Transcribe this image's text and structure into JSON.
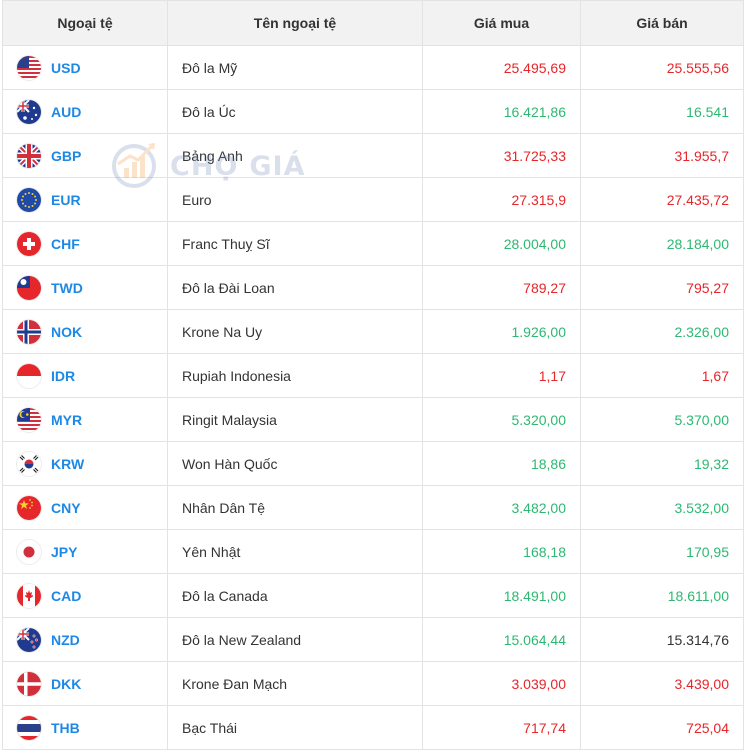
{
  "headers": {
    "code": "Ngoại tệ",
    "name": "Tên ngoại tệ",
    "buy": "Giá mua",
    "sell": "Giá bán"
  },
  "watermark": {
    "text": "CHỢ GIÁ",
    "icon": "chart-logo-icon"
  },
  "colors": {
    "up": "#2eb872",
    "down": "#e5262b",
    "code": "#1e88e5",
    "neutral": "#333333"
  },
  "rows": [
    {
      "code": "USD",
      "name": "Đô la Mỹ",
      "buy": "25.495,69",
      "sell": "25.555,56",
      "buy_color": "red",
      "sell_color": "red",
      "flag": "us-flag-icon"
    },
    {
      "code": "AUD",
      "name": "Đô la Úc",
      "buy": "16.421,86",
      "sell": "16.541",
      "buy_color": "green",
      "sell_color": "green",
      "flag": "au-flag-icon"
    },
    {
      "code": "GBP",
      "name": "Bảng Anh",
      "buy": "31.725,33",
      "sell": "31.955,7",
      "buy_color": "red",
      "sell_color": "red",
      "flag": "gb-flag-icon"
    },
    {
      "code": "EUR",
      "name": "Euro",
      "buy": "27.315,9",
      "sell": "27.435,72",
      "buy_color": "red",
      "sell_color": "red",
      "flag": "eu-flag-icon"
    },
    {
      "code": "CHF",
      "name": "Franc Thuỵ Sĩ",
      "buy": "28.004,00",
      "sell": "28.184,00",
      "buy_color": "green",
      "sell_color": "green",
      "flag": "ch-flag-icon"
    },
    {
      "code": "TWD",
      "name": "Đô la Đài Loan",
      "buy": "789,27",
      "sell": "795,27",
      "buy_color": "red",
      "sell_color": "red",
      "flag": "tw-flag-icon"
    },
    {
      "code": "NOK",
      "name": "Krone Na Uy",
      "buy": "1.926,00",
      "sell": "2.326,00",
      "buy_color": "green",
      "sell_color": "green",
      "flag": "no-flag-icon"
    },
    {
      "code": "IDR",
      "name": "Rupiah Indonesia",
      "buy": "1,17",
      "sell": "1,67",
      "buy_color": "red",
      "sell_color": "red",
      "flag": "id-flag-icon"
    },
    {
      "code": "MYR",
      "name": "Ringit Malaysia",
      "buy": "5.320,00",
      "sell": "5.370,00",
      "buy_color": "green",
      "sell_color": "green",
      "flag": "my-flag-icon"
    },
    {
      "code": "KRW",
      "name": "Won Hàn Quốc",
      "buy": "18,86",
      "sell": "19,32",
      "buy_color": "green",
      "sell_color": "green",
      "flag": "kr-flag-icon"
    },
    {
      "code": "CNY",
      "name": "Nhân Dân Tệ",
      "buy": "3.482,00",
      "sell": "3.532,00",
      "buy_color": "green",
      "sell_color": "green",
      "flag": "cn-flag-icon"
    },
    {
      "code": "JPY",
      "name": "Yên Nhật",
      "buy": "168,18",
      "sell": "170,95",
      "buy_color": "green",
      "sell_color": "green",
      "flag": "jp-flag-icon"
    },
    {
      "code": "CAD",
      "name": "Đô la Canada",
      "buy": "18.491,00",
      "sell": "18.611,00",
      "buy_color": "green",
      "sell_color": "green",
      "flag": "ca-flag-icon"
    },
    {
      "code": "NZD",
      "name": "Đô la New Zealand",
      "buy": "15.064,44",
      "sell": "15.314,76",
      "buy_color": "green",
      "sell_color": "black",
      "flag": "nz-flag-icon"
    },
    {
      "code": "DKK",
      "name": "Krone Đan Mạch",
      "buy": "3.039,00",
      "sell": "3.439,00",
      "buy_color": "red",
      "sell_color": "red",
      "flag": "dk-flag-icon"
    },
    {
      "code": "THB",
      "name": "Bạc Thái",
      "buy": "717,74",
      "sell": "725,04",
      "buy_color": "red",
      "sell_color": "red",
      "flag": "th-flag-icon"
    }
  ]
}
